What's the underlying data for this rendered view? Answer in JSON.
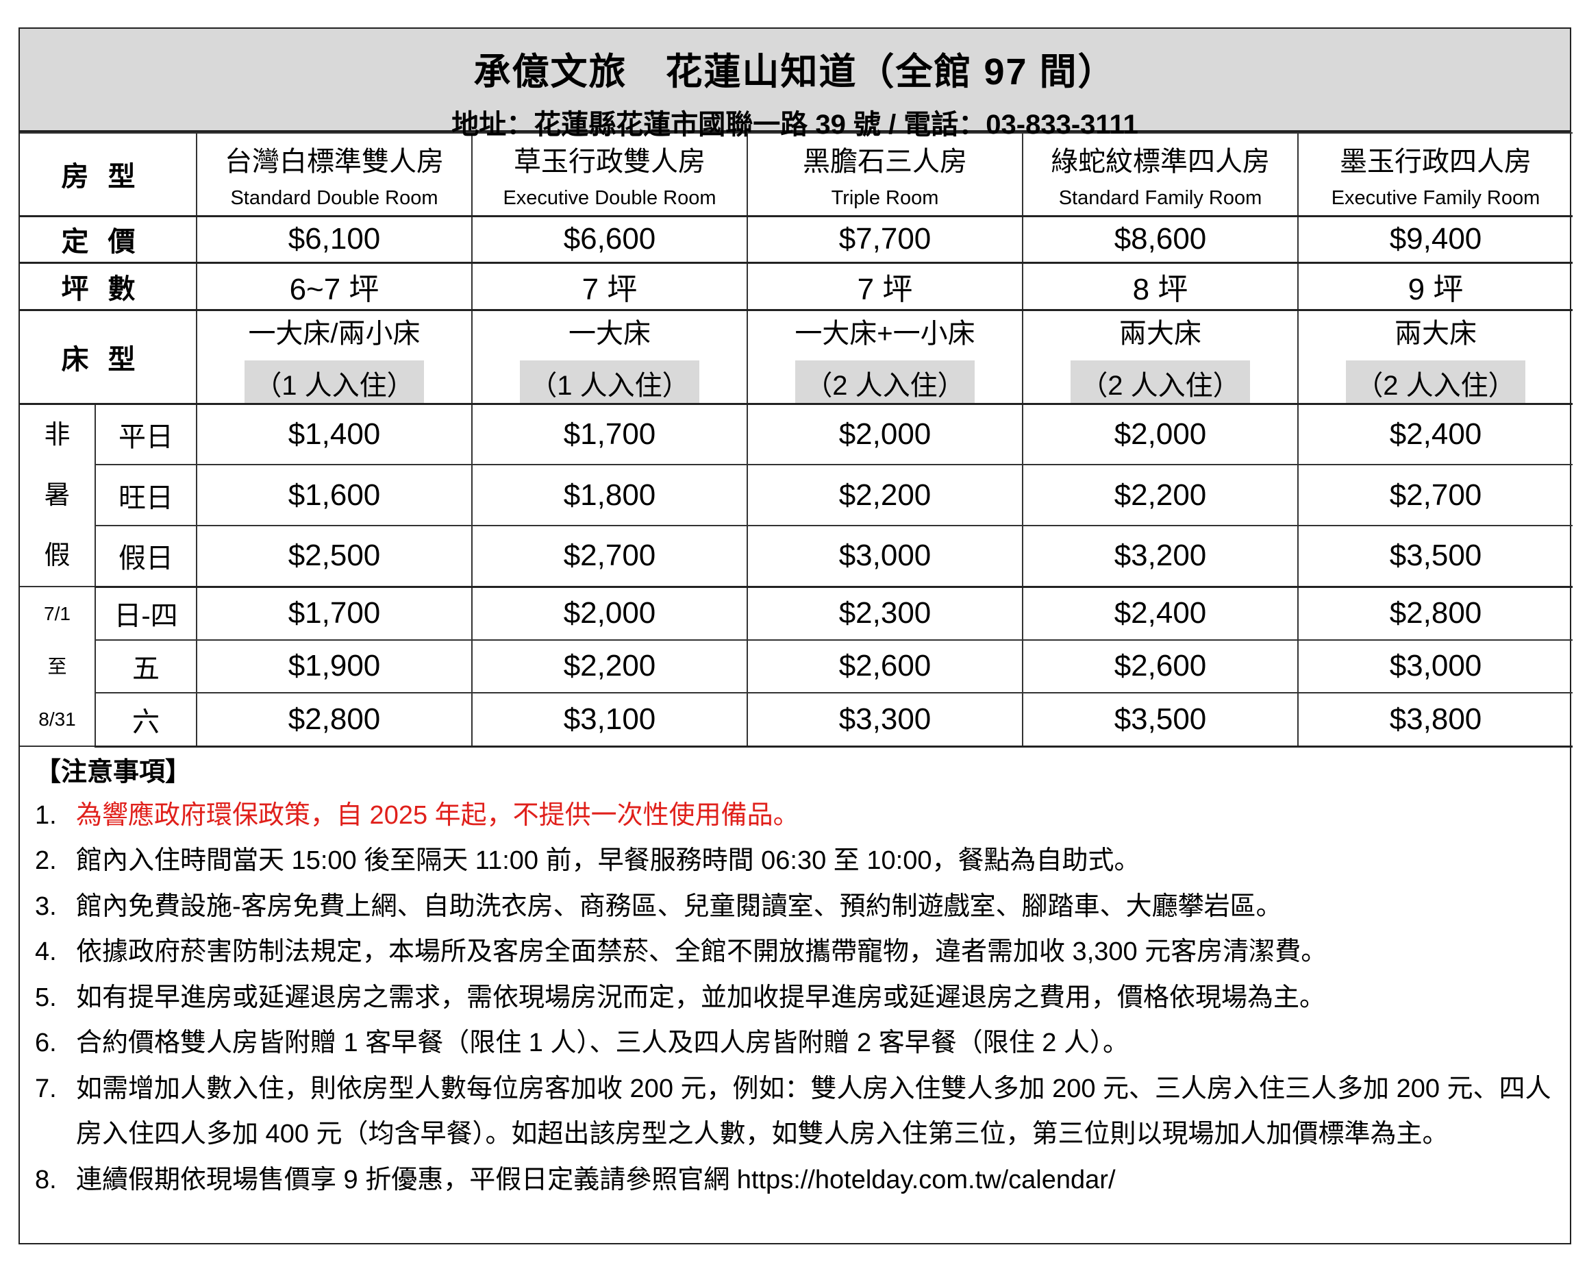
{
  "header": {
    "title": "承億文旅　花蓮山知道（全館 97 間）",
    "address": "地址：花蓮縣花蓮市國聯一路 39 號 / 電話：03-833-3111"
  },
  "labels": {
    "room_type": "房型",
    "list_price": "定價",
    "size": "坪數",
    "bed_type": "床型"
  },
  "rooms": [
    {
      "zh": "台灣白標準雙人房",
      "en": "Standard Double Room",
      "price": "$6,100",
      "size": "6~7 坪",
      "bed": "一大床/兩小床",
      "occupancy": "（1 人入住）"
    },
    {
      "zh": "草玉行政雙人房",
      "en": "Executive Double Room",
      "price": "$6,600",
      "size": "7 坪",
      "bed": "一大床",
      "occupancy": "（1 人入住）"
    },
    {
      "zh": "黑膽石三人房",
      "en": "Triple Room",
      "price": "$7,700",
      "size": "7 坪",
      "bed": "一大床+一小床",
      "occupancy": "（2 人入住）"
    },
    {
      "zh": "綠蛇紋標準四人房",
      "en": "Standard Family Room",
      "price": "$8,600",
      "size": "8 坪",
      "bed": "兩大床",
      "occupancy": "（2 人入住）"
    },
    {
      "zh": "墨玉行政四人房",
      "en": "Executive Family Room",
      "price": "$9,400",
      "size": "9 坪",
      "bed": "兩大床",
      "occupancy": "（2 人入住）"
    }
  ],
  "seasons": [
    {
      "label": [
        "非",
        "暑",
        "假"
      ],
      "rows": [
        {
          "day": "平日",
          "prices": [
            "$1,400",
            "$1,700",
            "$2,000",
            "$2,000",
            "$2,400"
          ]
        },
        {
          "day": "旺日",
          "prices": [
            "$1,600",
            "$1,800",
            "$2,200",
            "$2,200",
            "$2,700"
          ]
        },
        {
          "day": "假日",
          "prices": [
            "$2,500",
            "$2,700",
            "$3,000",
            "$3,200",
            "$3,500"
          ]
        }
      ]
    },
    {
      "label": [
        "7/1",
        "至",
        "8/31"
      ],
      "rows": [
        {
          "day": "日-四",
          "prices": [
            "$1,700",
            "$2,000",
            "$2,300",
            "$2,400",
            "$2,800"
          ]
        },
        {
          "day": "五",
          "prices": [
            "$1,900",
            "$2,200",
            "$2,600",
            "$2,600",
            "$3,000"
          ]
        },
        {
          "day": "六",
          "prices": [
            "$2,800",
            "$3,100",
            "$3,300",
            "$3,500",
            "$3,800"
          ]
        }
      ]
    }
  ],
  "notes": {
    "heading": "【注意事項】",
    "highlight_color": "#e0201b",
    "items": [
      {
        "num": "1.",
        "text": "為響應政府環保政策，自 2025 年起，不提供一次性使用備品。"
      },
      {
        "num": "2.",
        "text": "館內入住時間當天 15:00 後至隔天 11:00 前，早餐服務時間 06:30 至 10:00，餐點為自助式。"
      },
      {
        "num": "3.",
        "text": "館內免費設施-客房免費上網、自助洗衣房、商務區、兒童閱讀室、預約制遊戲室、腳踏車、大廳攀岩區。"
      },
      {
        "num": "4.",
        "text": "依據政府菸害防制法規定，本場所及客房全面禁菸、全館不開放攜帶寵物，違者需加收 3,300 元客房清潔費。"
      },
      {
        "num": "5.",
        "text": "如有提早進房或延遲退房之需求，需依現場房況而定，並加收提早進房或延遲退房之費用，價格依現場為主。"
      },
      {
        "num": "6.",
        "text": "合約價格雙人房皆附贈 1 客早餐（限住 1 人）、三人及四人房皆附贈 2 客早餐（限住 2 人）。"
      },
      {
        "num": "7.",
        "text": "如需增加人數入住，則依房型人數每位房客加收 200 元，例如：雙人房入住雙人多加 200 元、三人房入住三人多加 200 元、四人房入住四人多加 400 元（均含早餐）。如超出該房型之人數，如雙人房入住第三位，第三位則以現場加人加價標準為主。"
      },
      {
        "num": "8.",
        "text": "連續假期依現場售價享 9 折優惠，平假日定義請參照官網 https://hotelday.com.tw/calendar/"
      }
    ]
  }
}
